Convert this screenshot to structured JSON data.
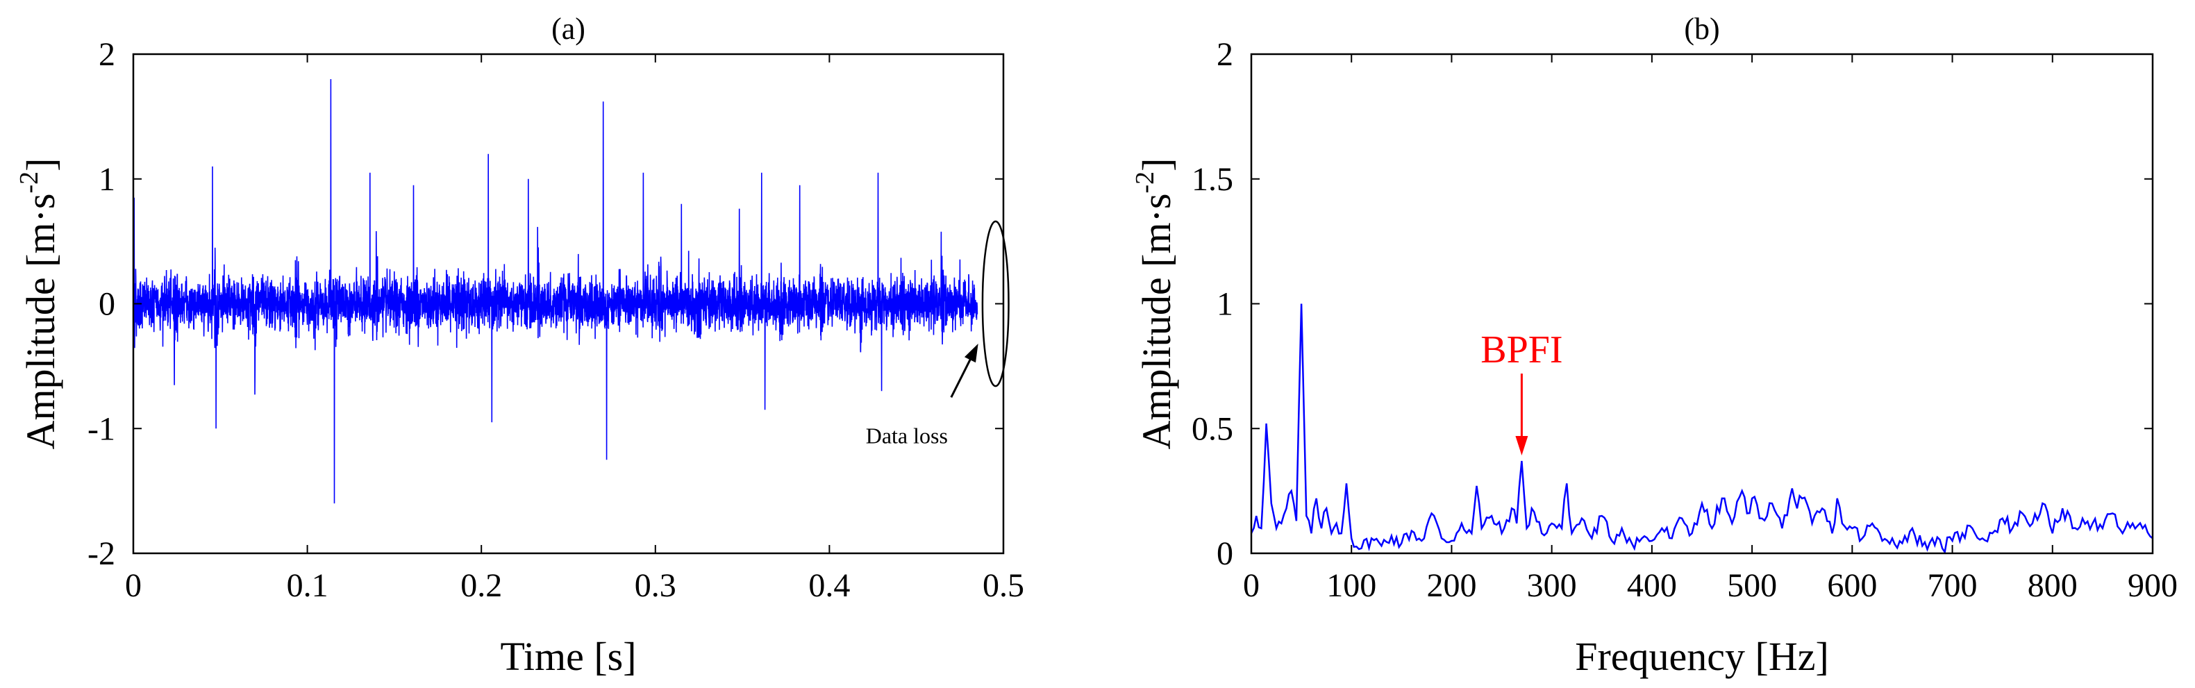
{
  "chart_data": [
    {
      "type": "line",
      "panel_label": "(a)",
      "xlabel": "Time [s]",
      "ylabel_main": "Amplitude [m·s",
      "ylabel_sup": "-2",
      "ylabel_close": "]",
      "xlim": [
        0,
        0.5
      ],
      "ylim": [
        -2,
        2
      ],
      "xticks": [
        0,
        0.1,
        0.2,
        0.3,
        0.4,
        0.5
      ],
      "xtick_labels": [
        "0",
        "0.1",
        "0.2",
        "0.3",
        "0.4",
        "0.5"
      ],
      "yticks": [
        -2,
        -1,
        0,
        1,
        2
      ],
      "ytick_labels": [
        "-2",
        "-1",
        "0",
        "1",
        "2"
      ],
      "signal_end": 0.485,
      "noise_level": 0.18,
      "impulse_interval": 0.0232,
      "impulse_first": 0.0002,
      "peaks": [
        {
          "t": 0.0005,
          "v": 0.85
        },
        {
          "t": 0.0455,
          "v": 1.1
        },
        {
          "t": 0.0475,
          "v": -1.0
        },
        {
          "t": 0.1135,
          "v": 1.8
        },
        {
          "t": 0.1155,
          "v": -1.6
        },
        {
          "t": 0.136,
          "v": 1.05
        },
        {
          "t": 0.161,
          "v": 0.95
        },
        {
          "t": 0.204,
          "v": 1.2
        },
        {
          "t": 0.206,
          "v": -0.95
        },
        {
          "t": 0.227,
          "v": 1.0
        },
        {
          "t": 0.27,
          "v": 1.62
        },
        {
          "t": 0.272,
          "v": -1.25
        },
        {
          "t": 0.293,
          "v": 1.05
        },
        {
          "t": 0.315,
          "v": 0.8
        },
        {
          "t": 0.361,
          "v": 1.05
        },
        {
          "t": 0.363,
          "v": -0.85
        },
        {
          "t": 0.383,
          "v": 0.95
        },
        {
          "t": 0.428,
          "v": 1.05
        },
        {
          "t": 0.43,
          "v": -0.7
        }
      ],
      "annotation": {
        "text": "Data loss",
        "ellipse_center": [
          0.4955,
          0.0
        ],
        "ellipse_radii": [
          0.0075,
          0.66
        ],
        "arrow_from": [
          0.47,
          -0.75
        ],
        "arrow_to": [
          0.4855,
          -0.32
        ]
      },
      "color": "#0000FF"
    },
    {
      "type": "line",
      "panel_label": "(b)",
      "xlabel": "Frequency [Hz]",
      "ylabel_main": "Amplitude [m·s",
      "ylabel_sup": "-2",
      "ylabel_close": "]",
      "xlim": [
        0,
        900
      ],
      "ylim": [
        0,
        2
      ],
      "xticks": [
        0,
        100,
        200,
        300,
        400,
        500,
        600,
        700,
        800,
        900
      ],
      "xtick_labels": [
        "0",
        "100",
        "200",
        "300",
        "400",
        "500",
        "600",
        "700",
        "800",
        "900"
      ],
      "yticks": [
        0,
        0.5,
        1,
        1.5,
        2
      ],
      "ytick_labels": [
        "0",
        "0.5",
        "1",
        "1.5",
        "2"
      ],
      "x": [
        0,
        5,
        10,
        15,
        20,
        25,
        30,
        35,
        40,
        45,
        50,
        55,
        60,
        65,
        70,
        75,
        80,
        85,
        90,
        95,
        100,
        110,
        120,
        130,
        140,
        150,
        160,
        170,
        180,
        190,
        200,
        210,
        220,
        225,
        230,
        240,
        250,
        260,
        265,
        270,
        275,
        280,
        290,
        300,
        310,
        315,
        320,
        330,
        340,
        350,
        360,
        370,
        380,
        390,
        400,
        410,
        420,
        430,
        440,
        450,
        460,
        470,
        480,
        490,
        495,
        500,
        510,
        520,
        530,
        540,
        545,
        550,
        560,
        570,
        580,
        585,
        590,
        600,
        610,
        620,
        630,
        640,
        650,
        660,
        670,
        680,
        690,
        700,
        710,
        720,
        730,
        740,
        750,
        760,
        770,
        780,
        790,
        800,
        810,
        820,
        830,
        840,
        850,
        860,
        870,
        880,
        890,
        900
      ],
      "values": [
        0.08,
        0.15,
        0.1,
        0.52,
        0.2,
        0.1,
        0.12,
        0.18,
        0.25,
        0.13,
        1.0,
        0.15,
        0.08,
        0.22,
        0.1,
        0.18,
        0.08,
        0.12,
        0.08,
        0.28,
        0.06,
        0.02,
        0.06,
        0.03,
        0.07,
        0.04,
        0.09,
        0.05,
        0.16,
        0.06,
        0.05,
        0.12,
        0.08,
        0.27,
        0.1,
        0.15,
        0.08,
        0.18,
        0.12,
        0.37,
        0.1,
        0.18,
        0.08,
        0.12,
        0.1,
        0.28,
        0.08,
        0.14,
        0.06,
        0.15,
        0.05,
        0.1,
        0.04,
        0.06,
        0.05,
        0.1,
        0.06,
        0.14,
        0.08,
        0.2,
        0.1,
        0.22,
        0.12,
        0.25,
        0.16,
        0.22,
        0.14,
        0.2,
        0.1,
        0.26,
        0.18,
        0.22,
        0.12,
        0.18,
        0.08,
        0.22,
        0.12,
        0.1,
        0.06,
        0.12,
        0.05,
        0.06,
        0.04,
        0.1,
        0.03,
        0.06,
        0.02,
        0.05,
        0.08,
        0.1,
        0.06,
        0.08,
        0.14,
        0.1,
        0.16,
        0.12,
        0.2,
        0.08,
        0.18,
        0.1,
        0.14,
        0.12,
        0.1,
        0.16,
        0.08,
        0.12,
        0.1,
        0.06
      ],
      "annotation": {
        "text": "BPFI",
        "target": [
          270,
          0.37
        ],
        "arrow_start_y": 0.72,
        "color": "#FF0000"
      },
      "color": "#0000FF"
    }
  ]
}
